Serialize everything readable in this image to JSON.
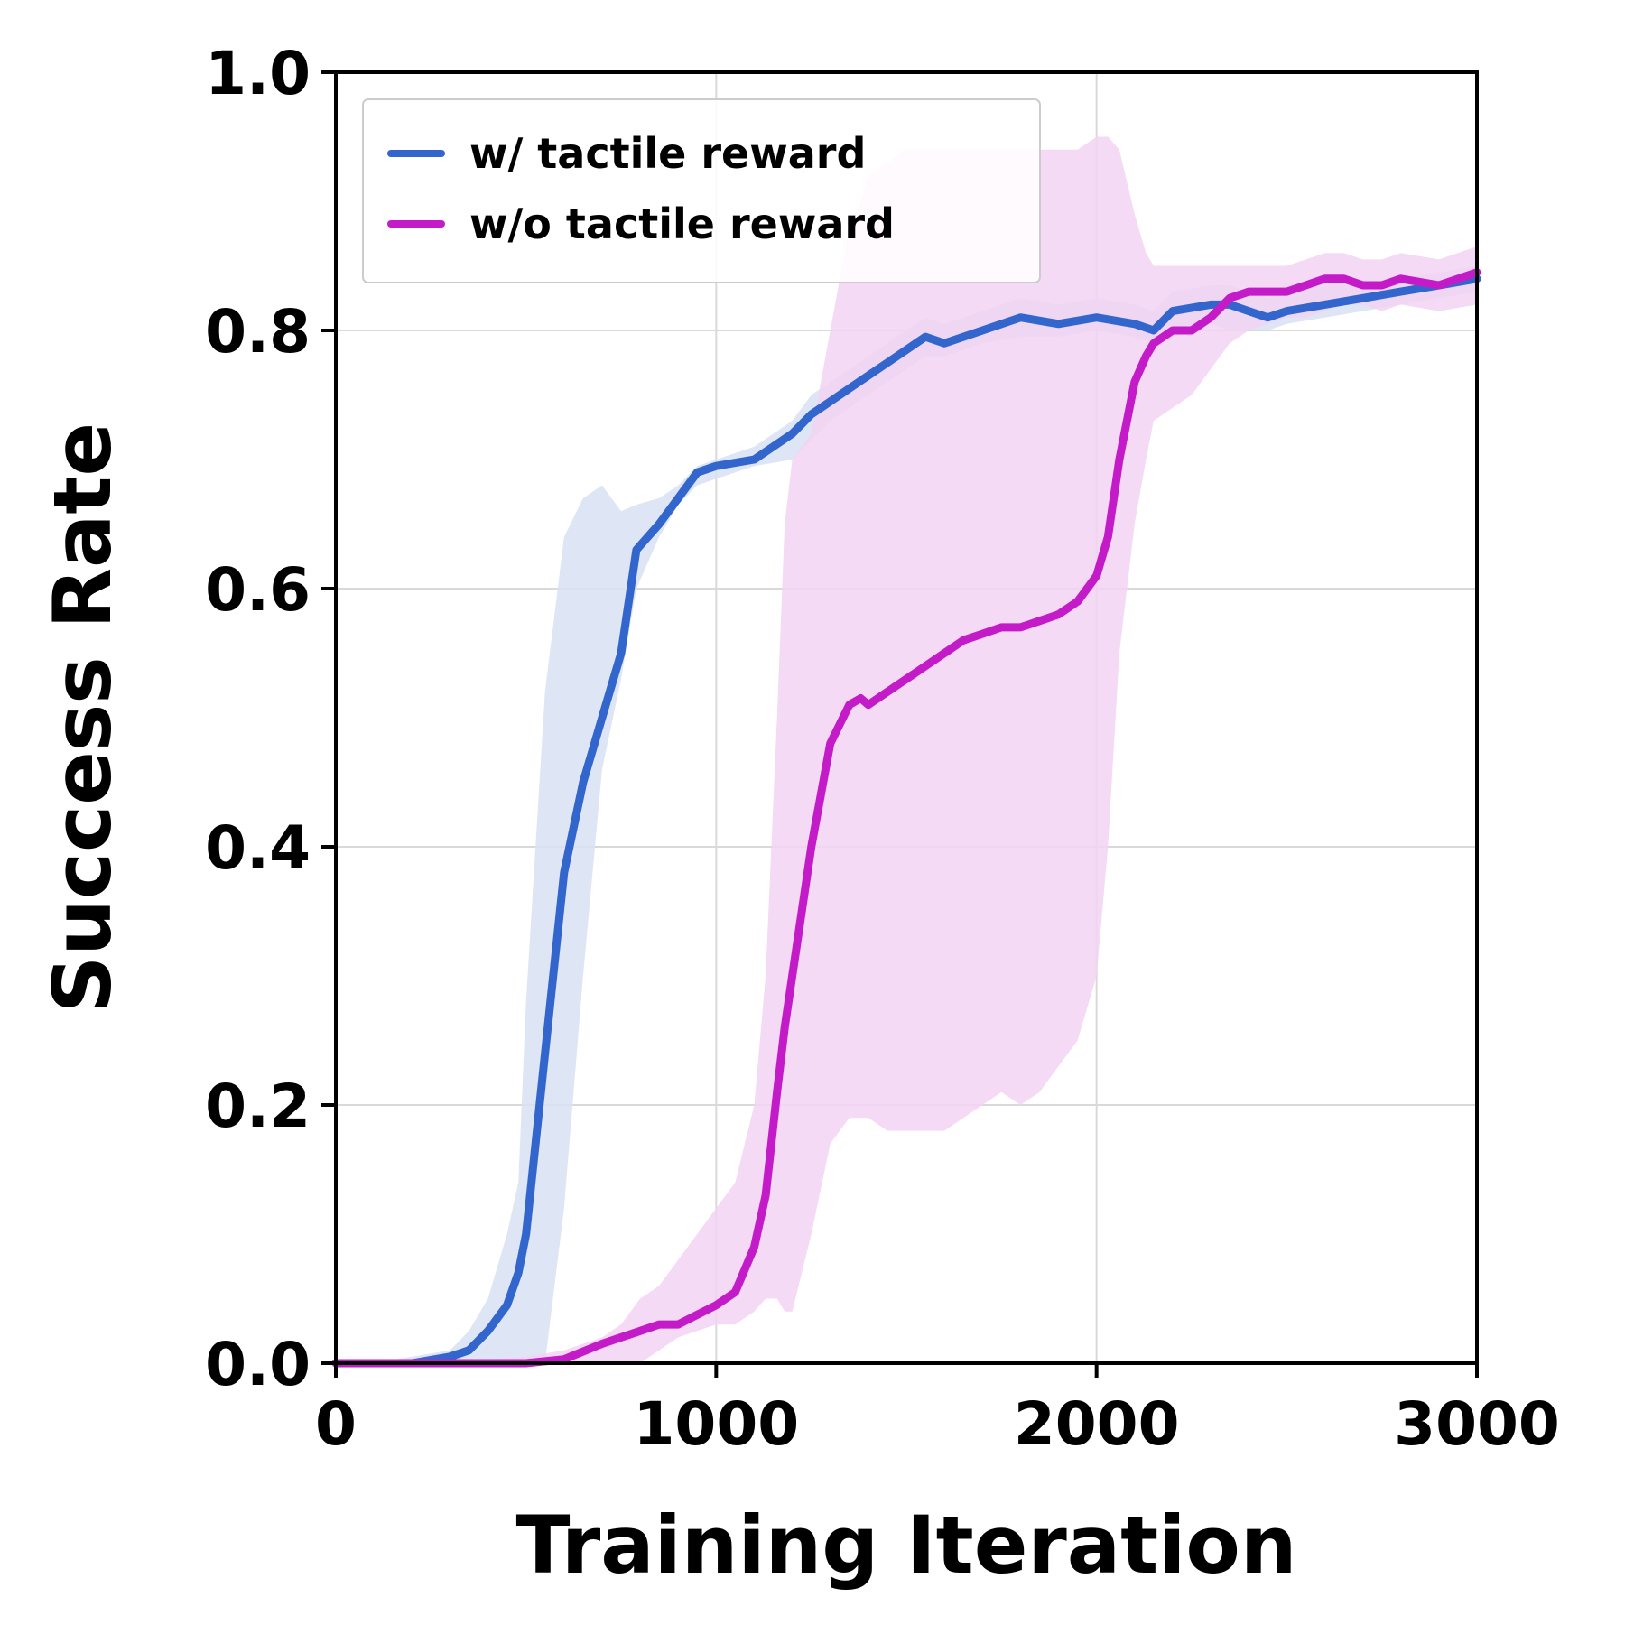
{
  "chart_data": {
    "type": "line",
    "xlabel": "Training Iteration",
    "ylabel": "Success Rate",
    "xlim": [
      0,
      3000
    ],
    "ylim": [
      0.0,
      1.0
    ],
    "xticks": [
      "0",
      "1000",
      "2000",
      "3000"
    ],
    "yticks": [
      "0.0",
      "0.2",
      "0.4",
      "0.6",
      "0.8",
      "1.0"
    ],
    "grid": true,
    "legend_position": "top-left",
    "series": [
      {
        "name": "w/ tactile reward",
        "color": "#3366cc",
        "band_color": "#d8e1f2",
        "x": [
          0,
          100,
          200,
          300,
          350,
          400,
          450,
          480,
          500,
          550,
          600,
          650,
          700,
          750,
          790,
          850,
          900,
          950,
          1000,
          1100,
          1200,
          1250,
          1300,
          1350,
          1400,
          1450,
          1500,
          1550,
          1600,
          1650,
          1700,
          1800,
          1900,
          2000,
          2100,
          2150,
          2200,
          2300,
          2350,
          2400,
          2450,
          2500,
          2600,
          2700,
          2800,
          2900,
          3000
        ],
        "y": [
          0.0,
          0.0,
          0.0,
          0.005,
          0.01,
          0.025,
          0.045,
          0.07,
          0.1,
          0.24,
          0.38,
          0.45,
          0.5,
          0.55,
          0.63,
          0.65,
          0.67,
          0.69,
          0.695,
          0.7,
          0.72,
          0.735,
          0.745,
          0.755,
          0.765,
          0.775,
          0.785,
          0.795,
          0.79,
          0.795,
          0.8,
          0.81,
          0.805,
          0.81,
          0.805,
          0.8,
          0.815,
          0.82,
          0.82,
          0.815,
          0.81,
          0.815,
          0.82,
          0.825,
          0.83,
          0.835,
          0.84
        ],
        "lower": [
          0.0,
          0.0,
          0.0,
          0.0,
          0.0,
          0.0,
          0.0,
          0.0,
          0.0,
          0.0,
          0.12,
          0.3,
          0.46,
          0.53,
          0.6,
          0.64,
          0.665,
          0.68,
          0.685,
          0.695,
          0.7,
          0.715,
          0.73,
          0.74,
          0.75,
          0.76,
          0.77,
          0.78,
          0.78,
          0.785,
          0.79,
          0.795,
          0.795,
          0.8,
          0.795,
          0.79,
          0.8,
          0.805,
          0.8,
          0.8,
          0.8,
          0.805,
          0.81,
          0.815,
          0.82,
          0.825,
          0.83
        ],
        "upper": [
          0.0,
          0.0,
          0.005,
          0.01,
          0.025,
          0.05,
          0.1,
          0.14,
          0.28,
          0.52,
          0.64,
          0.67,
          0.68,
          0.66,
          0.665,
          0.67,
          0.68,
          0.695,
          0.7,
          0.71,
          0.73,
          0.75,
          0.76,
          0.77,
          0.78,
          0.79,
          0.8,
          0.81,
          0.805,
          0.81,
          0.815,
          0.825,
          0.82,
          0.825,
          0.82,
          0.815,
          0.83,
          0.835,
          0.835,
          0.83,
          0.825,
          0.83,
          0.835,
          0.835,
          0.84,
          0.845,
          0.85
        ]
      },
      {
        "name": "w/o tactile reward",
        "color": "#c41bc8",
        "band_color": "#f2d3f2",
        "x": [
          0,
          300,
          500,
          600,
          700,
          750,
          800,
          850,
          900,
          1000,
          1050,
          1100,
          1130,
          1160,
          1180,
          1200,
          1250,
          1300,
          1350,
          1380,
          1400,
          1450,
          1500,
          1550,
          1600,
          1650,
          1700,
          1750,
          1800,
          1850,
          1900,
          1950,
          2000,
          2030,
          2060,
          2100,
          2130,
          2150,
          2200,
          2250,
          2300,
          2350,
          2400,
          2450,
          2500,
          2550,
          2600,
          2650,
          2700,
          2750,
          2800,
          2900,
          3000
        ],
        "y": [
          0.0,
          0.0,
          0.0,
          0.003,
          0.015,
          0.02,
          0.025,
          0.03,
          0.03,
          0.045,
          0.055,
          0.09,
          0.13,
          0.21,
          0.26,
          0.3,
          0.4,
          0.48,
          0.51,
          0.515,
          0.51,
          0.52,
          0.53,
          0.54,
          0.55,
          0.56,
          0.565,
          0.57,
          0.57,
          0.575,
          0.58,
          0.59,
          0.61,
          0.64,
          0.7,
          0.76,
          0.78,
          0.79,
          0.8,
          0.8,
          0.81,
          0.825,
          0.83,
          0.83,
          0.83,
          0.835,
          0.84,
          0.84,
          0.835,
          0.835,
          0.84,
          0.835,
          0.845
        ],
        "lower": [
          0.0,
          0.0,
          0.0,
          0.0,
          0.0,
          0.0,
          0.0,
          0.01,
          0.02,
          0.03,
          0.03,
          0.04,
          0.05,
          0.05,
          0.04,
          0.04,
          0.1,
          0.17,
          0.19,
          0.19,
          0.19,
          0.18,
          0.18,
          0.18,
          0.18,
          0.19,
          0.2,
          0.21,
          0.2,
          0.21,
          0.23,
          0.25,
          0.3,
          0.4,
          0.55,
          0.65,
          0.7,
          0.73,
          0.74,
          0.75,
          0.77,
          0.79,
          0.8,
          0.805,
          0.81,
          0.81,
          0.815,
          0.82,
          0.82,
          0.815,
          0.82,
          0.815,
          0.82
        ],
        "upper": [
          0.0,
          0.0,
          0.005,
          0.01,
          0.02,
          0.03,
          0.05,
          0.06,
          0.08,
          0.12,
          0.14,
          0.2,
          0.3,
          0.5,
          0.65,
          0.7,
          0.72,
          0.8,
          0.88,
          0.9,
          0.92,
          0.93,
          0.94,
          0.94,
          0.94,
          0.94,
          0.94,
          0.94,
          0.94,
          0.94,
          0.94,
          0.94,
          0.95,
          0.95,
          0.94,
          0.89,
          0.86,
          0.85,
          0.85,
          0.85,
          0.85,
          0.85,
          0.85,
          0.85,
          0.85,
          0.855,
          0.86,
          0.86,
          0.855,
          0.855,
          0.86,
          0.855,
          0.865
        ]
      }
    ]
  }
}
